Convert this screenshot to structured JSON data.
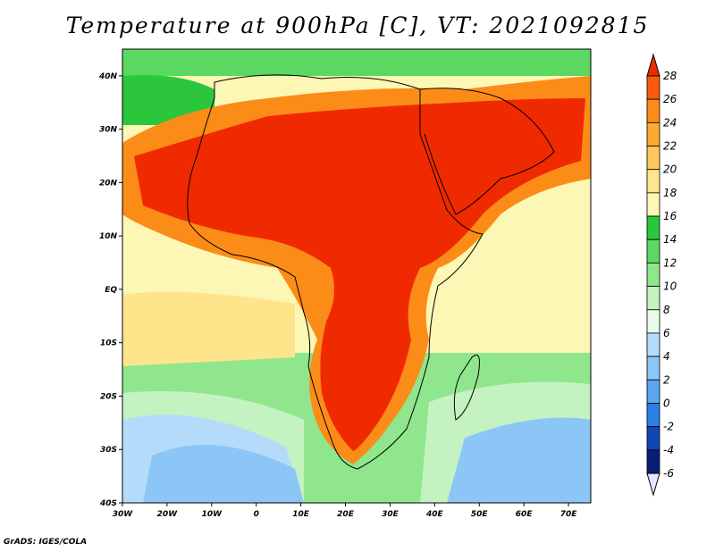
{
  "title": "Temperature at 900hPa [C], VT: 2021092815",
  "credit": "GrADS: IGES/COLA",
  "map": {
    "lon_range": [
      -30,
      75
    ],
    "lat_range": [
      -40,
      45
    ],
    "lon_ticks": [
      {
        "value": -30,
        "label": "30W"
      },
      {
        "value": -20,
        "label": "20W"
      },
      {
        "value": -10,
        "label": "10W"
      },
      {
        "value": 0,
        "label": "0"
      },
      {
        "value": 10,
        "label": "10E"
      },
      {
        "value": 20,
        "label": "20E"
      },
      {
        "value": 30,
        "label": "30E"
      },
      {
        "value": 40,
        "label": "40E"
      },
      {
        "value": 50,
        "label": "50E"
      },
      {
        "value": 60,
        "label": "60E"
      },
      {
        "value": 70,
        "label": "70E"
      }
    ],
    "lat_ticks": [
      {
        "value": 40,
        "label": "40N"
      },
      {
        "value": 30,
        "label": "30N"
      },
      {
        "value": 20,
        "label": "20N"
      },
      {
        "value": 10,
        "label": "10N"
      },
      {
        "value": 0,
        "label": "EQ"
      },
      {
        "value": -10,
        "label": "10S"
      },
      {
        "value": -20,
        "label": "20S"
      },
      {
        "value": -30,
        "label": "30S"
      },
      {
        "value": -40,
        "label": "40S"
      }
    ]
  },
  "colorbar": {
    "levels": [
      "28",
      "26",
      "24",
      "22",
      "20",
      "18",
      "16",
      "14",
      "12",
      "10",
      "8",
      "6",
      "4",
      "2",
      "0",
      "-2",
      "-4",
      "-6"
    ],
    "colors": [
      "#f02a00",
      "#fa5a0a",
      "#fc8c18",
      "#fdaa30",
      "#fec85a",
      "#fee58c",
      "#fcf7b4",
      "#2cc63c",
      "#5ad862",
      "#90e68c",
      "#c4f2c0",
      "#e8fce8",
      "#b4dcfa",
      "#8cc6f6",
      "#5aa6f0",
      "#2a80e6",
      "#1046b4",
      "#0a1e78",
      "#e6e6ff"
    ]
  }
}
